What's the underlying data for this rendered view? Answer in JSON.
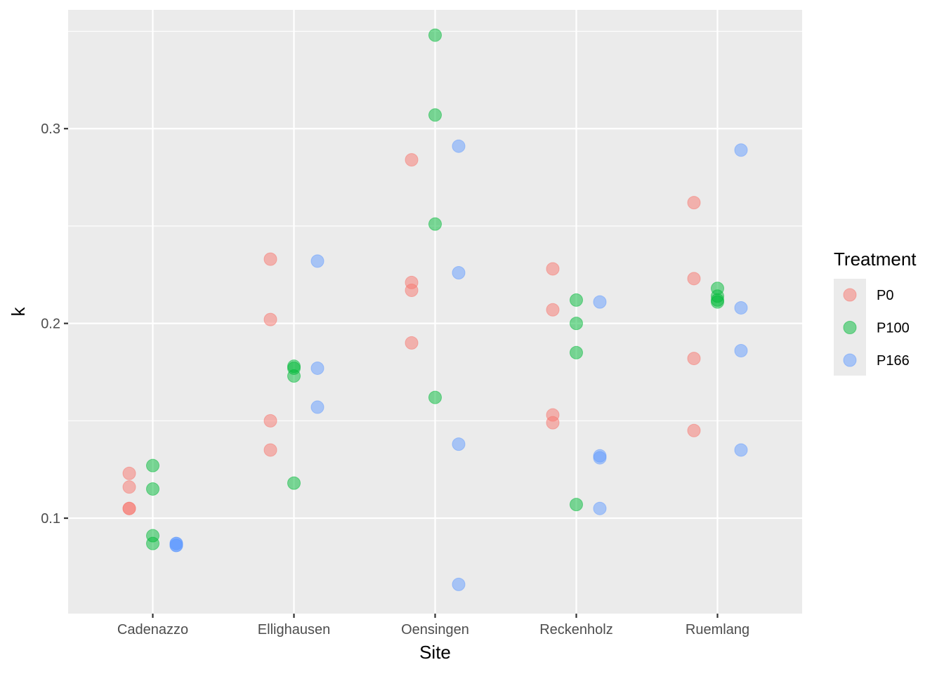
{
  "chart_data": {
    "type": "scatter",
    "title": "",
    "xlabel": "Site",
    "ylabel": "k",
    "categories": [
      "Cadenazzo",
      "Ellighausen",
      "Oensingen",
      "Reckenholz",
      "Ruemlang"
    ],
    "ylim": [
      0.051,
      0.361
    ],
    "yticks": [
      0.1,
      0.2,
      0.3
    ],
    "ytick_labels": [
      "0.1",
      "0.2",
      "0.3"
    ],
    "grid": true,
    "legend": {
      "title": "Treatment",
      "position": "right"
    },
    "series": [
      {
        "name": "P0",
        "color": "#F8766D",
        "points": [
          {
            "site": "Cadenazzo",
            "y": 0.123
          },
          {
            "site": "Cadenazzo",
            "y": 0.116
          },
          {
            "site": "Cadenazzo",
            "y": 0.105
          },
          {
            "site": "Cadenazzo",
            "y": 0.105
          },
          {
            "site": "Ellighausen",
            "y": 0.233
          },
          {
            "site": "Ellighausen",
            "y": 0.202
          },
          {
            "site": "Ellighausen",
            "y": 0.15
          },
          {
            "site": "Ellighausen",
            "y": 0.135
          },
          {
            "site": "Oensingen",
            "y": 0.284
          },
          {
            "site": "Oensingen",
            "y": 0.221
          },
          {
            "site": "Oensingen",
            "y": 0.217
          },
          {
            "site": "Oensingen",
            "y": 0.19
          },
          {
            "site": "Reckenholz",
            "y": 0.228
          },
          {
            "site": "Reckenholz",
            "y": 0.207
          },
          {
            "site": "Reckenholz",
            "y": 0.153
          },
          {
            "site": "Reckenholz",
            "y": 0.149
          },
          {
            "site": "Ruemlang",
            "y": 0.262
          },
          {
            "site": "Ruemlang",
            "y": 0.223
          },
          {
            "site": "Ruemlang",
            "y": 0.182
          },
          {
            "site": "Ruemlang",
            "y": 0.145
          }
        ]
      },
      {
        "name": "P100",
        "color": "#00BA38",
        "points": [
          {
            "site": "Cadenazzo",
            "y": 0.127
          },
          {
            "site": "Cadenazzo",
            "y": 0.115
          },
          {
            "site": "Cadenazzo",
            "y": 0.091
          },
          {
            "site": "Cadenazzo",
            "y": 0.087
          },
          {
            "site": "Ellighausen",
            "y": 0.178
          },
          {
            "site": "Ellighausen",
            "y": 0.177
          },
          {
            "site": "Ellighausen",
            "y": 0.173
          },
          {
            "site": "Ellighausen",
            "y": 0.118
          },
          {
            "site": "Oensingen",
            "y": 0.348
          },
          {
            "site": "Oensingen",
            "y": 0.307
          },
          {
            "site": "Oensingen",
            "y": 0.251
          },
          {
            "site": "Oensingen",
            "y": 0.162
          },
          {
            "site": "Reckenholz",
            "y": 0.212
          },
          {
            "site": "Reckenholz",
            "y": 0.2
          },
          {
            "site": "Reckenholz",
            "y": 0.185
          },
          {
            "site": "Reckenholz",
            "y": 0.107
          },
          {
            "site": "Ruemlang",
            "y": 0.218
          },
          {
            "site": "Ruemlang",
            "y": 0.214
          },
          {
            "site": "Ruemlang",
            "y": 0.212
          },
          {
            "site": "Ruemlang",
            "y": 0.211
          }
        ]
      },
      {
        "name": "P166",
        "color": "#619CFF",
        "points": [
          {
            "site": "Cadenazzo",
            "y": 0.087
          },
          {
            "site": "Cadenazzo",
            "y": 0.087
          },
          {
            "site": "Cadenazzo",
            "y": 0.086
          },
          {
            "site": "Cadenazzo",
            "y": 0.086
          },
          {
            "site": "Ellighausen",
            "y": 0.232
          },
          {
            "site": "Ellighausen",
            "y": 0.177
          },
          {
            "site": "Ellighausen",
            "y": 0.157
          },
          {
            "site": "Oensingen",
            "y": 0.291
          },
          {
            "site": "Oensingen",
            "y": 0.226
          },
          {
            "site": "Oensingen",
            "y": 0.138
          },
          {
            "site": "Oensingen",
            "y": 0.066
          },
          {
            "site": "Reckenholz",
            "y": 0.211
          },
          {
            "site": "Reckenholz",
            "y": 0.132
          },
          {
            "site": "Reckenholz",
            "y": 0.131
          },
          {
            "site": "Reckenholz",
            "y": 0.105
          },
          {
            "site": "Ruemlang",
            "y": 0.289
          },
          {
            "site": "Ruemlang",
            "y": 0.208
          },
          {
            "site": "Ruemlang",
            "y": 0.186
          },
          {
            "site": "Ruemlang",
            "y": 0.135
          }
        ]
      }
    ]
  }
}
